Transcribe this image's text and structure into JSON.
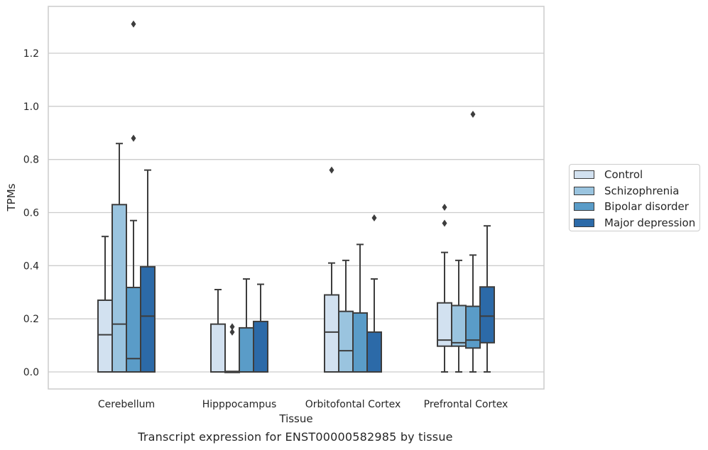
{
  "caption": "Transcript expression for ENST00000582985 by tissue",
  "chart_data": {
    "type": "box",
    "title": "",
    "xlabel": "Tissue",
    "ylabel": "TPMs",
    "ylim": [
      -0.065,
      1.38
    ],
    "yticks": [
      "0.0",
      "0.2",
      "0.4",
      "0.6",
      "0.8",
      "1.0",
      "1.2"
    ],
    "grid": "horizontal",
    "legend_position": "right",
    "categories": [
      "Cerebellum",
      "Hipppocampus",
      "Orbitofontal Cortex",
      "Prefrontal Cortex"
    ],
    "series": [
      {
        "name": "Control",
        "color": "#d2e1f0",
        "boxes": [
          {
            "whislo": 0.0,
            "q1": 0.0,
            "med": 0.14,
            "q3": 0.27,
            "whishi": 0.51,
            "fliers": []
          },
          {
            "whislo": 0.0,
            "q1": 0.0,
            "med": 0.0,
            "q3": 0.18,
            "whishi": 0.31,
            "fliers": []
          },
          {
            "whislo": 0.0,
            "q1": 0.0,
            "med": 0.15,
            "q3": 0.29,
            "whishi": 0.41,
            "fliers": [
              0.76
            ]
          },
          {
            "whislo": 0.0,
            "q1": 0.097,
            "med": 0.12,
            "q3": 0.26,
            "whishi": 0.45,
            "fliers": [
              0.56,
              0.62
            ]
          }
        ]
      },
      {
        "name": "Schizophrenia",
        "color": "#9ac4df",
        "boxes": [
          {
            "whislo": 0.0,
            "q1": 0.0,
            "med": 0.18,
            "q3": 0.63,
            "whishi": 0.86,
            "fliers": []
          },
          {
            "whislo": 0.0,
            "q1": 0.0,
            "med": 0.0,
            "q3": 0.0,
            "whishi": 0.0,
            "fliers": [
              0.15,
              0.17
            ]
          },
          {
            "whislo": 0.0,
            "q1": 0.0,
            "med": 0.08,
            "q3": 0.228,
            "whishi": 0.42,
            "fliers": []
          },
          {
            "whislo": 0.0,
            "q1": 0.097,
            "med": 0.11,
            "q3": 0.25,
            "whishi": 0.42,
            "fliers": []
          }
        ]
      },
      {
        "name": "Bipolar disorder",
        "color": "#5a9cc8",
        "boxes": [
          {
            "whislo": 0.0,
            "q1": 0.0,
            "med": 0.05,
            "q3": 0.318,
            "whishi": 0.57,
            "fliers": [
              0.88,
              1.31
            ]
          },
          {
            "whislo": 0.0,
            "q1": 0.0,
            "med": 0.0,
            "q3": 0.166,
            "whishi": 0.35,
            "fliers": []
          },
          {
            "whislo": 0.0,
            "q1": 0.0,
            "med": 0.0,
            "q3": 0.222,
            "whishi": 0.48,
            "fliers": []
          },
          {
            "whislo": 0.0,
            "q1": 0.09,
            "med": 0.12,
            "q3": 0.247,
            "whishi": 0.44,
            "fliers": [
              0.97
            ]
          }
        ]
      },
      {
        "name": "Major depression",
        "color": "#2c6aa8",
        "boxes": [
          {
            "whislo": 0.0,
            "q1": 0.0,
            "med": 0.21,
            "q3": 0.396,
            "whishi": 0.76,
            "fliers": []
          },
          {
            "whislo": 0.0,
            "q1": 0.0,
            "med": 0.0,
            "q3": 0.19,
            "whishi": 0.33,
            "fliers": []
          },
          {
            "whislo": 0.0,
            "q1": 0.0,
            "med": 0.0,
            "q3": 0.15,
            "whishi": 0.35,
            "fliers": [
              0.58
            ]
          },
          {
            "whislo": 0.0,
            "q1": 0.11,
            "med": 0.21,
            "q3": 0.32,
            "whishi": 0.55,
            "fliers": []
          }
        ]
      }
    ]
  }
}
